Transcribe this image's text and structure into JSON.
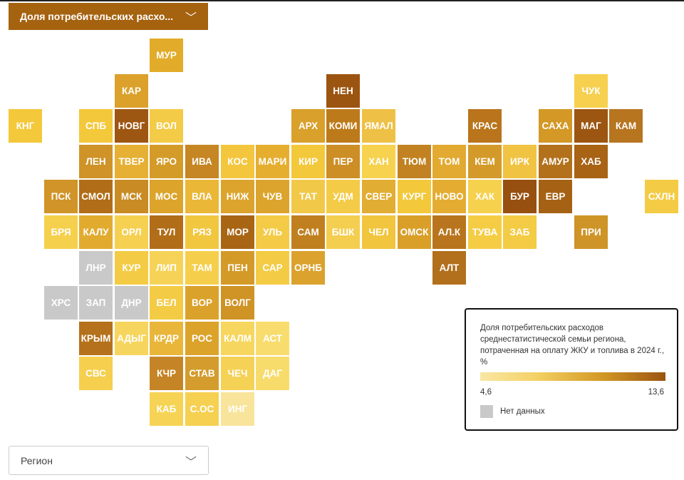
{
  "header": {
    "dropdown_label": "Доля потребительских расхо...",
    "dropdown_chevron": "﹀"
  },
  "legend": {
    "title": "Доля потребительских расходов среднестатистической семьи региона, потраченная на оплату ЖКУ и топлива в 2024 г., %",
    "min": "4,6",
    "max": "13,6",
    "no_data": "Нет данных",
    "colors": {
      "low": "#f8e7a4",
      "mid": "#f4d165",
      "high": "#d49a26",
      "max": "#9b5410",
      "no_data": "#c9c9c9"
    }
  },
  "footer": {
    "region_dropdown_label": "Регион",
    "region_dropdown_chevron": "﹀"
  },
  "tiles": [
    {
      "label": "МУР",
      "col": 4,
      "row": 0,
      "color": "#e2ab2a"
    },
    {
      "label": "КАР",
      "col": 3,
      "row": 1,
      "color": "#dba12a"
    },
    {
      "label": "НЕН",
      "col": 9,
      "row": 1,
      "color": "#9c5411"
    },
    {
      "label": "ЧУК",
      "col": 16,
      "row": 1,
      "color": "#f6d04e"
    },
    {
      "label": "КНГ",
      "col": 0,
      "row": 2,
      "color": "#f3c83a"
    },
    {
      "label": "СПБ",
      "col": 2,
      "row": 2,
      "color": "#f3c83a"
    },
    {
      "label": "НОВГ",
      "col": 3,
      "row": 2,
      "color": "#9e5613"
    },
    {
      "label": "ВОЛ",
      "col": 4,
      "row": 2,
      "color": "#f4cb46"
    },
    {
      "label": "АРХ",
      "col": 8,
      "row": 2,
      "color": "#d9a02c"
    },
    {
      "label": "КОМИ",
      "col": 9,
      "row": 2,
      "color": "#bd7a1a"
    },
    {
      "label": "ЯМАЛ",
      "col": 10,
      "row": 2,
      "color": "#eec046"
    },
    {
      "label": "КРАС",
      "col": 13,
      "row": 2,
      "color": "#b9741c"
    },
    {
      "label": "САХА",
      "col": 15,
      "row": 2,
      "color": "#d39825"
    },
    {
      "label": "МАГ",
      "col": 16,
      "row": 2,
      "color": "#9c5612"
    },
    {
      "label": "КАМ",
      "col": 17,
      "row": 2,
      "color": "#b77520"
    },
    {
      "label": "ЛЕН",
      "col": 2,
      "row": 3,
      "color": "#cf9327"
    },
    {
      "label": "ТВЕР",
      "col": 3,
      "row": 3,
      "color": "#e6b034"
    },
    {
      "label": "ЯРО",
      "col": 4,
      "row": 3,
      "color": "#d59b28"
    },
    {
      "label": "ИВА",
      "col": 5,
      "row": 3,
      "color": "#c68623"
    },
    {
      "label": "КОС",
      "col": 6,
      "row": 3,
      "color": "#f4c63e"
    },
    {
      "label": "МАРИ",
      "col": 7,
      "row": 3,
      "color": "#e6ae2f"
    },
    {
      "label": "КИР",
      "col": 8,
      "row": 3,
      "color": "#f3c83a"
    },
    {
      "label": "ПЕР",
      "col": 9,
      "row": 3,
      "color": "#cc8e25"
    },
    {
      "label": "ХАН",
      "col": 10,
      "row": 3,
      "color": "#f6d24f"
    },
    {
      "label": "ТЮМ",
      "col": 11,
      "row": 3,
      "color": "#c28221"
    },
    {
      "label": "ТОМ",
      "col": 12,
      "row": 3,
      "color": "#e2aa30"
    },
    {
      "label": "КЕМ",
      "col": 13,
      "row": 3,
      "color": "#d49a29"
    },
    {
      "label": "ИРК",
      "col": 14,
      "row": 3,
      "color": "#f1c343"
    },
    {
      "label": "АМУР",
      "col": 15,
      "row": 3,
      "color": "#b3711b"
    },
    {
      "label": "ХАБ",
      "col": 16,
      "row": 3,
      "color": "#a86315"
    },
    {
      "label": "ПСК",
      "col": 1,
      "row": 4,
      "color": "#d09428"
    },
    {
      "label": "СМОЛ",
      "col": 2,
      "row": 4,
      "color": "#b16d17"
    },
    {
      "label": "МСК",
      "col": 3,
      "row": 4,
      "color": "#c98b23"
    },
    {
      "label": "МОС",
      "col": 4,
      "row": 4,
      "color": "#dca42b"
    },
    {
      "label": "ВЛА",
      "col": 5,
      "row": 4,
      "color": "#ebb737"
    },
    {
      "label": "НИЖ",
      "col": 6,
      "row": 4,
      "color": "#dca42c"
    },
    {
      "label": "ЧУВ",
      "col": 7,
      "row": 4,
      "color": "#dca42c"
    },
    {
      "label": "ТАТ",
      "col": 8,
      "row": 4,
      "color": "#f2c848"
    },
    {
      "label": "УДМ",
      "col": 9,
      "row": 4,
      "color": "#f4cb46"
    },
    {
      "label": "СВЕР",
      "col": 10,
      "row": 4,
      "color": "#e2ad33"
    },
    {
      "label": "КУРГ",
      "col": 11,
      "row": 4,
      "color": "#f3c83a"
    },
    {
      "label": "НОВО",
      "col": 12,
      "row": 4,
      "color": "#e4ad31"
    },
    {
      "label": "ХАК",
      "col": 13,
      "row": 4,
      "color": "#f6d14e"
    },
    {
      "label": "БУР",
      "col": 14,
      "row": 4,
      "color": "#97500f"
    },
    {
      "label": "ЕВР",
      "col": 15,
      "row": 4,
      "color": "#a66214"
    },
    {
      "label": "СХЛН",
      "col": 18,
      "row": 4,
      "color": "#f4cb44"
    },
    {
      "label": "БРЯ",
      "col": 1,
      "row": 5,
      "color": "#f5d04c"
    },
    {
      "label": "КАЛУ",
      "col": 2,
      "row": 5,
      "color": "#e1ab2f"
    },
    {
      "label": "ОРЛ",
      "col": 3,
      "row": 5,
      "color": "#f6d051"
    },
    {
      "label": "ТУЛ",
      "col": 4,
      "row": 5,
      "color": "#b16d18"
    },
    {
      "label": "РЯЗ",
      "col": 5,
      "row": 5,
      "color": "#f2c740"
    },
    {
      "label": "МОР",
      "col": 6,
      "row": 5,
      "color": "#a86514"
    },
    {
      "label": "УЛЬ",
      "col": 7,
      "row": 5,
      "color": "#f4cb46"
    },
    {
      "label": "САМ",
      "col": 8,
      "row": 5,
      "color": "#c0801f"
    },
    {
      "label": "БШК",
      "col": 9,
      "row": 5,
      "color": "#f4ce4f"
    },
    {
      "label": "ЧЕЛ",
      "col": 10,
      "row": 5,
      "color": "#f2c53e"
    },
    {
      "label": "ОМСК",
      "col": 11,
      "row": 5,
      "color": "#d99f29"
    },
    {
      "label": "АЛ.К",
      "col": 12,
      "row": 5,
      "color": "#b9751d"
    },
    {
      "label": "ТУВА",
      "col": 13,
      "row": 5,
      "color": "#f5cd45"
    },
    {
      "label": "ЗАБ",
      "col": 14,
      "row": 5,
      "color": "#f4cb44"
    },
    {
      "label": "ПРИ",
      "col": 16,
      "row": 5,
      "color": "#cf9428"
    },
    {
      "label": "ЛНР",
      "col": 2,
      "row": 6,
      "color": "#c9c9c9"
    },
    {
      "label": "КУР",
      "col": 3,
      "row": 6,
      "color": "#f4cb44"
    },
    {
      "label": "ЛИП",
      "col": 4,
      "row": 6,
      "color": "#f6d357"
    },
    {
      "label": "ТАМ",
      "col": 5,
      "row": 6,
      "color": "#f5cf4c"
    },
    {
      "label": "ПЕН",
      "col": 6,
      "row": 6,
      "color": "#d49a28"
    },
    {
      "label": "САР",
      "col": 7,
      "row": 6,
      "color": "#f4cb44"
    },
    {
      "label": "ОРНБ",
      "col": 8,
      "row": 6,
      "color": "#dba22d"
    },
    {
      "label": "АЛТ",
      "col": 12,
      "row": 6,
      "color": "#b2701c"
    },
    {
      "label": "ХРС",
      "col": 1,
      "row": 7,
      "color": "#c9c9c9"
    },
    {
      "label": "ЗАП",
      "col": 2,
      "row": 7,
      "color": "#c9c9c9"
    },
    {
      "label": "ДНР",
      "col": 3,
      "row": 7,
      "color": "#c9c9c9"
    },
    {
      "label": "БЕЛ",
      "col": 4,
      "row": 7,
      "color": "#f4cb44"
    },
    {
      "label": "ВОР",
      "col": 5,
      "row": 7,
      "color": "#dba22b"
    },
    {
      "label": "ВОЛГ",
      "col": 6,
      "row": 7,
      "color": "#cf9326"
    },
    {
      "label": "КРЫМ",
      "col": 2,
      "row": 8,
      "color": "#b5711b"
    },
    {
      "label": "АДЫГ",
      "col": 3,
      "row": 8,
      "color": "#f6d55e"
    },
    {
      "label": "КРДР",
      "col": 4,
      "row": 8,
      "color": "#eab63a"
    },
    {
      "label": "РОС",
      "col": 5,
      "row": 8,
      "color": "#dca32b"
    },
    {
      "label": "КАЛМ",
      "col": 6,
      "row": 8,
      "color": "#f6d65e"
    },
    {
      "label": "АСТ",
      "col": 7,
      "row": 8,
      "color": "#f8dd6e"
    },
    {
      "label": "СВС",
      "col": 2,
      "row": 9,
      "color": "#f5cf4d"
    },
    {
      "label": "КЧР",
      "col": 4,
      "row": 9,
      "color": "#c58526"
    },
    {
      "label": "СТАВ",
      "col": 5,
      "row": 9,
      "color": "#d49c2d"
    },
    {
      "label": "ЧЕЧ",
      "col": 6,
      "row": 9,
      "color": "#f5d156"
    },
    {
      "label": "ДАГ",
      "col": 7,
      "row": 9,
      "color": "#f7dc6c"
    },
    {
      "label": "КАБ",
      "col": 4,
      "row": 10,
      "color": "#f6d354"
    },
    {
      "label": "С.ОС",
      "col": 5,
      "row": 10,
      "color": "#f5d051"
    },
    {
      "label": "ИНГ",
      "col": 6,
      "row": 10,
      "color": "#f8e49a"
    }
  ]
}
